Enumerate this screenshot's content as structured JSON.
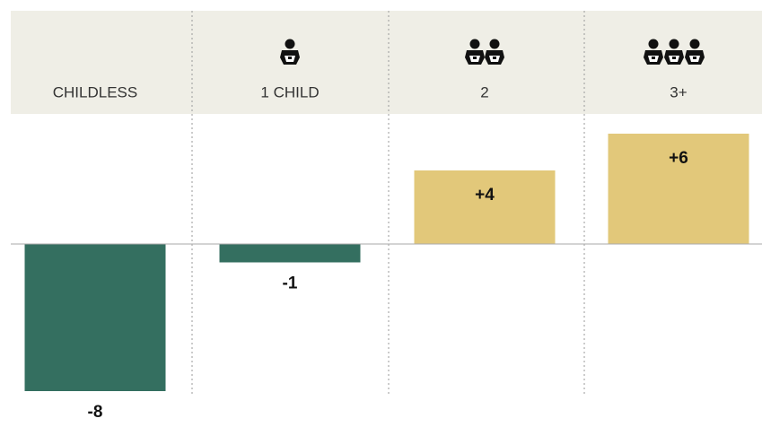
{
  "chart_data": {
    "type": "bar",
    "categories": [
      "CHILDLESS",
      "1 CHILD",
      "2",
      "3+"
    ],
    "values": [
      -8,
      -1,
      4,
      6
    ],
    "value_labels": [
      "-8",
      "-1",
      "+4",
      "+6"
    ],
    "colors": [
      "#346f60",
      "#346f60",
      "#e2c87a",
      "#e2c87a"
    ]
  }
}
